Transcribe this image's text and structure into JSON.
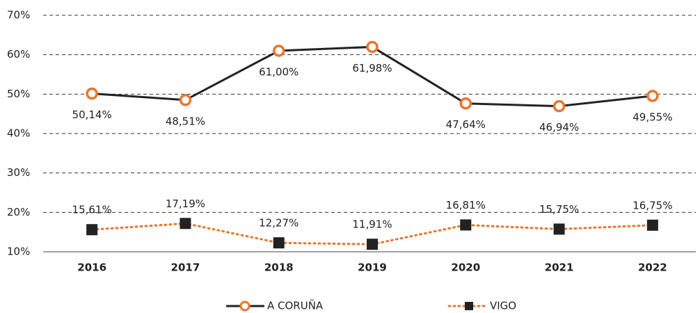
{
  "chart_data": {
    "type": "line",
    "categories": [
      "2016",
      "2017",
      "2018",
      "2019",
      "2020",
      "2021",
      "2022"
    ],
    "series": [
      {
        "name": "A CORUÑA",
        "color": "#e8762d",
        "line_color": "#222222",
        "values": [
          50.14,
          48.51,
          61.0,
          61.98,
          47.64,
          46.94,
          49.55
        ],
        "value_labels": [
          "50,14%",
          "48,51%",
          "61,00%",
          "61,98%",
          "47,64%",
          "46,94%",
          "49,55%"
        ]
      },
      {
        "name": "VIGO",
        "color": "#e8762d",
        "marker_color": "#222222",
        "values": [
          15.61,
          17.19,
          12.27,
          11.91,
          16.81,
          15.75,
          16.75
        ],
        "value_labels": [
          "15,61%",
          "17,19%",
          "12,27%",
          "11,91%",
          "16,81%",
          "15,75%",
          "16,75%"
        ]
      }
    ],
    "ylim": [
      10,
      70
    ],
    "yticks": [
      {
        "value": 10,
        "label": "10%"
      },
      {
        "value": 20,
        "label": "20%"
      },
      {
        "value": 30,
        "label": "30%"
      },
      {
        "value": 40,
        "label": "40%"
      },
      {
        "value": 50,
        "label": "50%"
      },
      {
        "value": 60,
        "label": "60%"
      },
      {
        "value": 70,
        "label": "70%"
      }
    ],
    "grid": true,
    "legend": "bottom"
  }
}
